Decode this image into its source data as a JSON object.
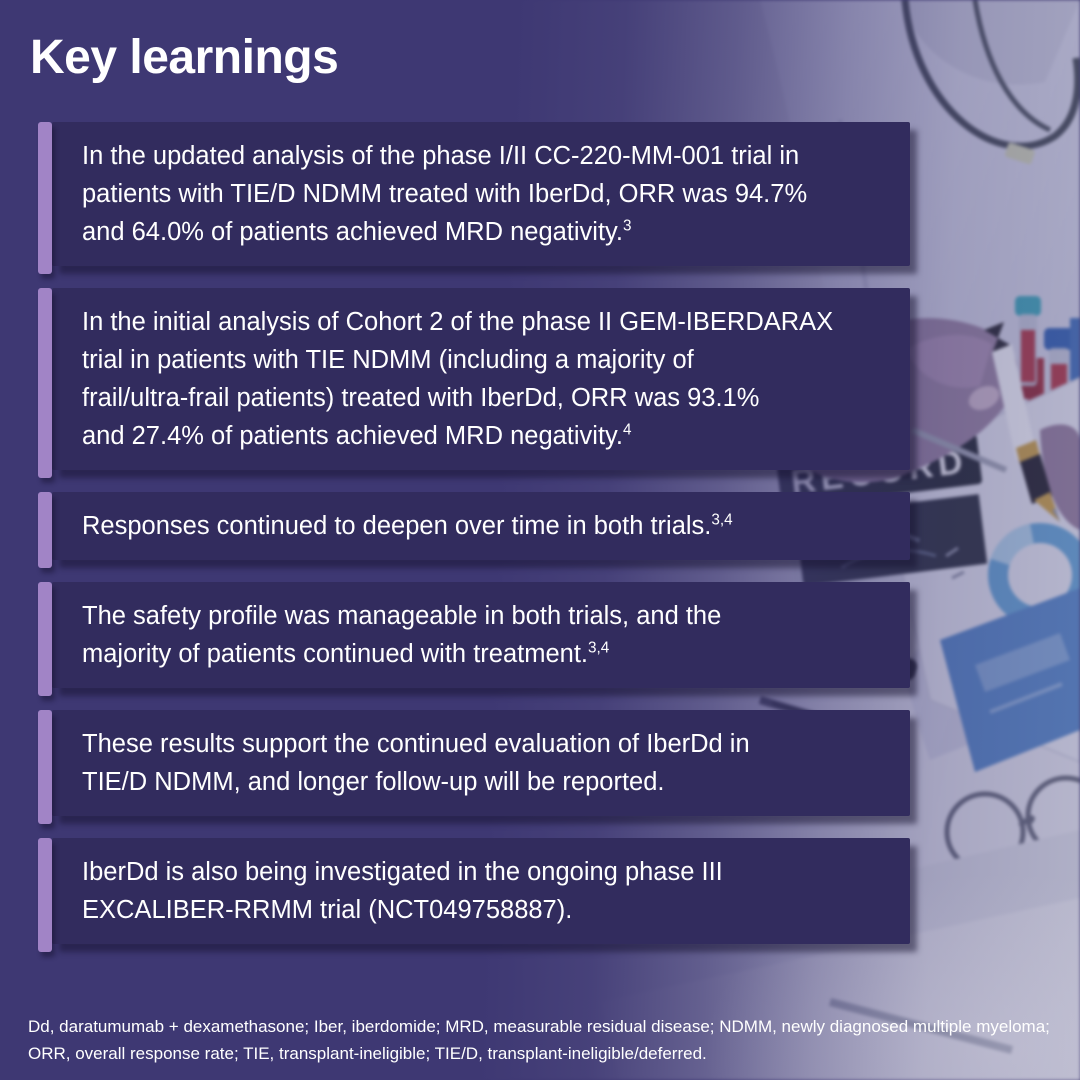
{
  "title": "Key learnings",
  "cards": [
    {
      "lines": [
        "In the updated analysis of the phase I/II CC-220-MM-001 trial in",
        "patients with TIE/D NDMM treated with IberDd, ORR was 94.7%",
        "and 64.0% of patients achieved MRD negativity."
      ],
      "sup": "3"
    },
    {
      "lines": [
        "In the initial analysis of Cohort 2 of the phase II GEM-IBERDARAX",
        "trial in patients with TIE NDMM (including a majority of",
        "frail/ultra-frail patients) treated with IberDd, ORR was 93.1%",
        "and 27.4% of patients achieved MRD negativity."
      ],
      "sup": "4"
    },
    {
      "lines": [
        "Responses continued to deepen over time in both trials."
      ],
      "sup": "3,4"
    },
    {
      "lines": [
        "The safety profile was manageable in both trials, and the",
        "majority of patients continued with treatment."
      ],
      "sup": "3,4"
    },
    {
      "lines": [
        "These results support the continued evaluation of IberDd in",
        "TIE/D NDMM, and longer follow-up will be reported."
      ],
      "sup": ""
    },
    {
      "lines": [
        "IberDd is also being investigated in the ongoing phase III",
        "EXCALIBER-RRMM trial (NCT049758887)."
      ],
      "sup": ""
    }
  ],
  "footnote_lines": [
    "Dd, daratumumab + dexamethasone; Iber, iberdomide; MRD, measurable residual disease; NDMM, newly diagnosed multiple myeloma;",
    "ORR, overall response rate; TIE, transplant-ineligible; TIE/D, transplant-ineligible/deferred."
  ],
  "photo": {
    "record_label": "RECORD"
  },
  "colors": {
    "background": "#3E3873",
    "card_background": "#322C5E",
    "accent_bar": "#A184C6",
    "text_color": "#FFFFFF"
  }
}
